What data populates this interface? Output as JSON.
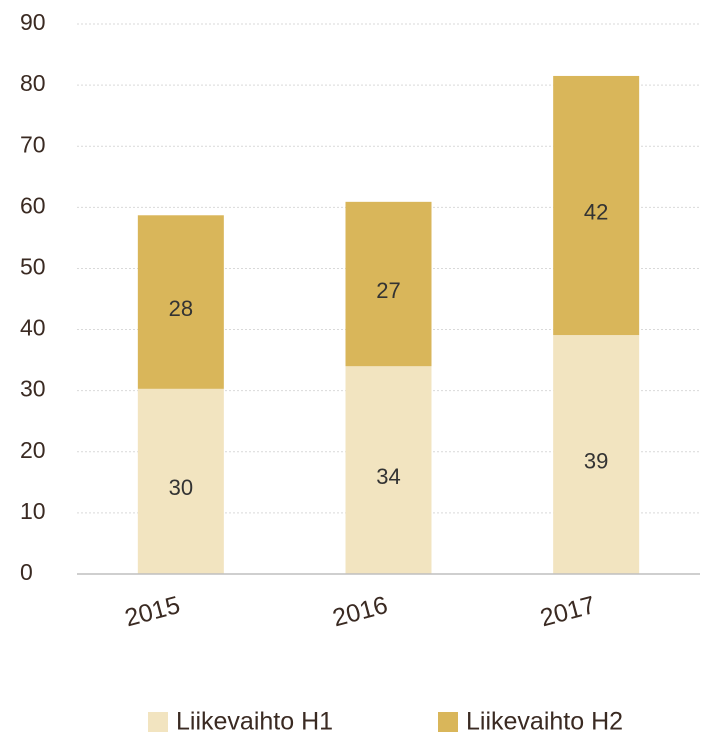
{
  "chart_data": {
    "type": "stacked_bar",
    "categories": [
      "2015",
      "2016",
      "2017"
    ],
    "series": [
      {
        "name": "Liikevaihto H1",
        "color": "#f2e4c0",
        "values": [
          30.3,
          34,
          39.1
        ],
        "value_labels": [
          "30",
          "34",
          "39"
        ]
      },
      {
        "name": "Liikevaihto H2",
        "color": "#d9b65a",
        "values": [
          28.4,
          26.9,
          42.4
        ],
        "value_labels": [
          "28",
          "27",
          "42"
        ]
      }
    ],
    "ylim": [
      0,
      90
    ],
    "yticks": [
      0,
      10,
      20,
      30,
      40,
      50,
      60,
      70,
      80,
      90
    ],
    "grid": true,
    "legend": "bottom"
  }
}
